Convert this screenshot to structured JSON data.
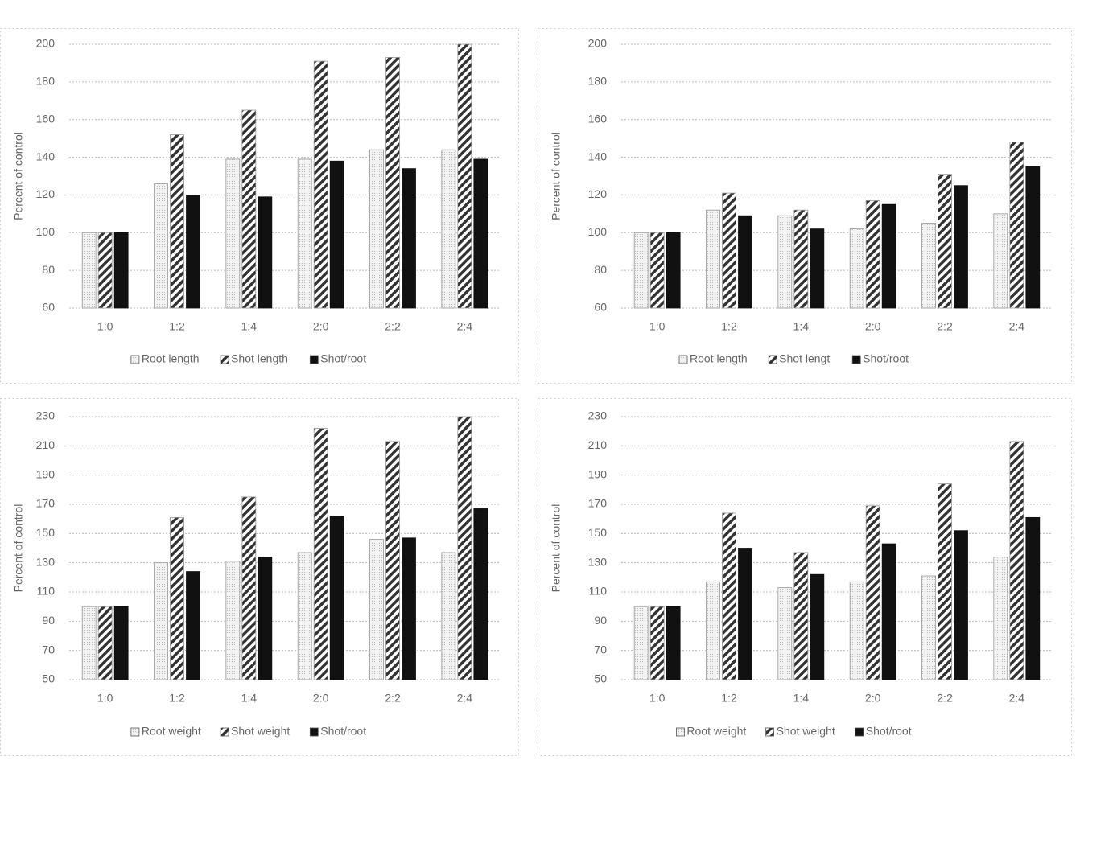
{
  "chart_data": [
    {
      "type": "bar",
      "y_label": "Percent of control",
      "categories": [
        "1:0",
        "1:2",
        "1:4",
        "2:0",
        "2:2",
        "2:4"
      ],
      "ylim": [
        60,
        200
      ],
      "yticks": [
        60,
        80,
        100,
        120,
        140,
        160,
        180,
        200
      ],
      "grid": true,
      "legend": "bottom",
      "series": [
        {
          "name": "Root length",
          "color": "#e6e6e6",
          "pattern": "dots",
          "values": [
            100,
            126,
            139,
            139,
            144,
            144
          ]
        },
        {
          "name": "Shot length",
          "color": "#333333",
          "pattern": "hatch",
          "values": [
            100,
            152,
            165,
            191,
            193,
            200
          ]
        },
        {
          "name": "Shot/root",
          "color": "#111111",
          "pattern": "solid",
          "values": [
            100,
            120,
            119,
            138,
            134,
            139
          ]
        }
      ]
    },
    {
      "type": "bar",
      "y_label": "Percent of control",
      "categories": [
        "1:0",
        "1:2",
        "1:4",
        "2:0",
        "2:2",
        "2:4"
      ],
      "ylim": [
        60,
        200
      ],
      "yticks": [
        60,
        80,
        100,
        120,
        140,
        160,
        180,
        200
      ],
      "grid": true,
      "legend": "bottom",
      "series": [
        {
          "name": "Root length",
          "color": "#e6e6e6",
          "pattern": "dots",
          "values": [
            100,
            112,
            109,
            102,
            105,
            110
          ]
        },
        {
          "name": "Shot lengt",
          "color": "#333333",
          "pattern": "hatch",
          "values": [
            100,
            121,
            112,
            117,
            131,
            148
          ]
        },
        {
          "name": "Shot/root",
          "color": "#111111",
          "pattern": "solid",
          "values": [
            100,
            109,
            102,
            115,
            125,
            135
          ]
        }
      ]
    },
    {
      "type": "bar",
      "y_label": "Percent of control",
      "categories": [
        "1:0",
        "1:2",
        "1:4",
        "2:0",
        "2:2",
        "2:4"
      ],
      "ylim": [
        50,
        230
      ],
      "yticks": [
        50,
        70,
        90,
        110,
        130,
        150,
        170,
        190,
        210,
        230
      ],
      "grid": true,
      "legend": "bottom",
      "series": [
        {
          "name": "Root weight",
          "color": "#e6e6e6",
          "pattern": "dots",
          "values": [
            100,
            130,
            131,
            137,
            146,
            137
          ]
        },
        {
          "name": "Shot weight",
          "color": "#333333",
          "pattern": "hatch",
          "values": [
            100,
            161,
            175,
            222,
            213,
            230
          ]
        },
        {
          "name": "Shot/root",
          "color": "#111111",
          "pattern": "solid",
          "values": [
            100,
            124,
            134,
            162,
            147,
            167
          ]
        }
      ]
    },
    {
      "type": "bar",
      "y_label": "Percent of control",
      "categories": [
        "1:0",
        "1:2",
        "1:4",
        "2:0",
        "2:2",
        "2:4"
      ],
      "ylim": [
        50,
        230
      ],
      "yticks": [
        50,
        70,
        90,
        110,
        130,
        150,
        170,
        190,
        210,
        230
      ],
      "grid": true,
      "legend": "bottom",
      "series": [
        {
          "name": "Root weight",
          "color": "#e6e6e6",
          "pattern": "dots",
          "values": [
            100,
            117,
            113,
            117,
            121,
            134
          ]
        },
        {
          "name": "Shot weight",
          "color": "#333333",
          "pattern": "hatch",
          "values": [
            100,
            164,
            137,
            169,
            184,
            213
          ]
        },
        {
          "name": "Shot/root",
          "color": "#111111",
          "pattern": "solid",
          "values": [
            100,
            140,
            122,
            143,
            152,
            161
          ]
        }
      ]
    }
  ]
}
